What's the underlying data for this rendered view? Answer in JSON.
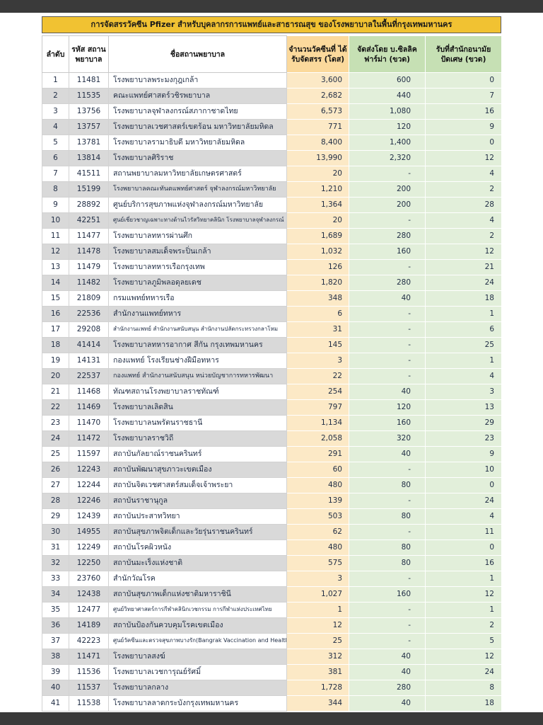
{
  "title_bar": {
    "text": "การจัดสรรวัคซีน Pfizer สำหรับบุคลากรการแพทย์และสาธารณสุข ของโรงพยาบาลในพื้นที่กรุงเทพมหานคร"
  },
  "colors": {
    "letterbox": "#3a3a3a",
    "title_bg": "#F1C232",
    "band_gray": "#D9D9D9",
    "doses_header": "#FBD99C",
    "doses_cell": "#FCE9C6",
    "vials_header": "#C6E0B4",
    "vials_cell": "#E2EFDA"
  },
  "table": {
    "columns": [
      {
        "key": "row-number",
        "label": "ลำดับ"
      },
      {
        "key": "hospital-code",
        "label": "รหัส สถานพยาบาล"
      },
      {
        "key": "hospital-name",
        "label": "ชื่อสถานพยาบาล"
      },
      {
        "key": "doses-allocated",
        "label": "จำนวนวัคซีนที่ ได้รับจัดสรร (โดส)"
      },
      {
        "key": "vials-zuellig",
        "label": "จัดส่งโดย บ.ซิลลิค ฟาร์ม่า (ขวด)"
      },
      {
        "key": "vials-health-office",
        "label": "รับที่สำนักอนามัย ปัดเศษ (ขวด)"
      }
    ],
    "rows": [
      [
        "1",
        "11481",
        "โรงพยาบาลพระมงกุฎเกล้า",
        "3,600",
        "600",
        "0"
      ],
      [
        "2",
        "11535",
        "คณะแพทย์ศาสตร์วชิรพยาบาล",
        "2,682",
        "440",
        "7"
      ],
      [
        "3",
        "13756",
        "โรงพยาบาลจุฬาลงกรณ์สภากาชาดไทย",
        "6,573",
        "1,080",
        "16"
      ],
      [
        "4",
        "13757",
        "โรงพยาบาลเวชศาสตร์เขตร้อน มหาวิทยาลัยมหิดล",
        "771",
        "120",
        "9"
      ],
      [
        "5",
        "13781",
        "โรงพยาบาลรามาธิบดี มหาวิทยาลัยมหิดล",
        "8,400",
        "1,400",
        "0"
      ],
      [
        "6",
        "13814",
        "โรงพยาบาลศิริราช",
        "13,990",
        "2,320",
        "12"
      ],
      [
        "7",
        "41511",
        "สถานพยาบาลมหาวิทยาลัยเกษตรศาสตร์",
        "20",
        "-",
        "4"
      ],
      [
        "8",
        "15199",
        "โรงพยาบาลคณะทันตแพทย์ศาสตร์ จุฬาลงกรณ์มหาวิทยาลัย",
        "1,210",
        "200",
        "2"
      ],
      [
        "9",
        "28892",
        "ศูนย์บริการสุขภาพแห่งจุฬาลงกรณ์มหาวิทยาลัย",
        "1,364",
        "200",
        "28"
      ],
      [
        "10",
        "42251",
        "ศูนย์เชี่ยวชาญเฉพาะทางด้านไวรัสวิทยาคลินิก โรงพยาบาลจุฬาลงกรณ์",
        "20",
        "-",
        "4"
      ],
      [
        "11",
        "11477",
        "โรงพยาบาลทหารผ่านศึก",
        "1,689",
        "280",
        "2"
      ],
      [
        "12",
        "11478",
        "โรงพยาบาลสมเด็จพระปิ่นเกล้า",
        "1,032",
        "160",
        "12"
      ],
      [
        "13",
        "11479",
        "โรงพยาบาลทหารเรือกรุงเทพ",
        "126",
        "-",
        "21"
      ],
      [
        "14",
        "11482",
        "โรงพยาบาลภูมิพลอดุลยเดช",
        "1,820",
        "280",
        "24"
      ],
      [
        "15",
        "21809",
        "กรมแพทย์ทหารเรือ",
        "348",
        "40",
        "18"
      ],
      [
        "16",
        "22536",
        "สำนักงานแพทย์ทหาร",
        "6",
        "-",
        "1"
      ],
      [
        "17",
        "29208",
        "สำนักงานแพทย์ สำนักงานสนับสนุน สำนักงานปลัดกระทรวงกลาโหม",
        "31",
        "-",
        "6"
      ],
      [
        "18",
        "41414",
        "โรงพยาบาลทหารอากาศ สีกัน กรุงเทพมหานคร",
        "145",
        "-",
        "25"
      ],
      [
        "19",
        "14131",
        "กองแพทย์ โรงเรียนช่างฝีมือทหาร",
        "3",
        "-",
        "1"
      ],
      [
        "20",
        "22537",
        "กองแพทย์ สำนักงานสนับสนุน หน่วยบัญชาการทหารพัฒนา",
        "22",
        "-",
        "4"
      ],
      [
        "21",
        "11468",
        "ทัณฑสถานโรงพยาบาลราชทัณฑ์",
        "254",
        "40",
        "3"
      ],
      [
        "22",
        "11469",
        "โรงพยาบาลเลิดสิน",
        "797",
        "120",
        "13"
      ],
      [
        "23",
        "11470",
        "โรงพยาบาลนพรัตนราชธานี",
        "1,134",
        "160",
        "29"
      ],
      [
        "24",
        "11472",
        "โรงพยาบาลราชวิถี",
        "2,058",
        "320",
        "23"
      ],
      [
        "25",
        "11597",
        "สถาบันกัลยาณ์ราชนครินทร์",
        "291",
        "40",
        "9"
      ],
      [
        "26",
        "12243",
        "สถาบันพัฒนาสุขภาวะเขตเมือง",
        "60",
        "-",
        "10"
      ],
      [
        "27",
        "12244",
        "สถาบันจิตเวชศาสตร์สมเด็จเจ้าพระยา",
        "480",
        "80",
        "0"
      ],
      [
        "28",
        "12246",
        "สถาบันราชานุกูล",
        "139",
        "-",
        "24"
      ],
      [
        "29",
        "12439",
        "สถาบันประสาทวิทยา",
        "503",
        "80",
        "4"
      ],
      [
        "30",
        "14955",
        "สถาบันสุขภาพจิตเด็กและวัยรุ่นราชนครินทร์",
        "62",
        "-",
        "11"
      ],
      [
        "31",
        "12249",
        "สถาบันโรคผิวหนัง",
        "480",
        "80",
        "0"
      ],
      [
        "32",
        "12250",
        "สถาบันมะเร็งแห่งชาติ",
        "575",
        "80",
        "16"
      ],
      [
        "33",
        "23760",
        "สำนักวัณโรค",
        "3",
        "-",
        "1"
      ],
      [
        "34",
        "12438",
        "สถาบันสุขภาพเด็กแห่งชาติมหาราชินี",
        "1,027",
        "160",
        "12"
      ],
      [
        "35",
        "12477",
        "ศูนย์วิทยาศาสตร์การกีฬาคลินิกเวชกรรม การกีฬาแห่งประเทศไทย",
        "1",
        "-",
        "1"
      ],
      [
        "36",
        "14189",
        "สถาบันป้องกันควบคุมโรคเขตเมือง",
        "12",
        "-",
        "2"
      ],
      [
        "37",
        "42223",
        "ศูนย์วัคซีนและตรวจสุขภาพบางรัก(Bangrak Vaccination and Health Center)",
        "25",
        "-",
        "5"
      ],
      [
        "38",
        "11471",
        "โรงพยาบาลสงฆ์",
        "312",
        "40",
        "12"
      ],
      [
        "39",
        "11536",
        "โรงพยาบาลเวชการุณย์รัศมิ์",
        "381",
        "40",
        "24"
      ],
      [
        "40",
        "11537",
        "โรงพยาบาลกลาง",
        "1,728",
        "280",
        "8"
      ],
      [
        "41",
        "11538",
        "โรงพยาบาลลาดกระบังกรุงเทพมหานคร",
        "344",
        "40",
        "18"
      ]
    ]
  }
}
